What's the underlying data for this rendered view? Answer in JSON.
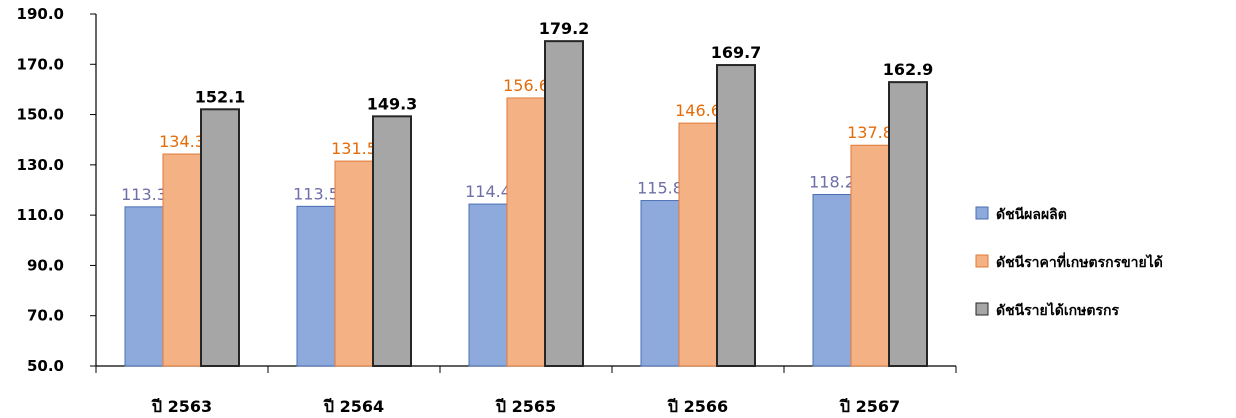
{
  "chart_data": {
    "type": "bar",
    "categories": [
      "ปี 2563",
      "ปี 2564",
      "ปี 2565",
      "ปี 2566",
      "ปี 2567"
    ],
    "series": [
      {
        "name": "ดัชนีผลผลิต",
        "values": [
          113.3,
          113.5,
          114.4,
          115.8,
          118.2
        ],
        "color": "#8EA9DB",
        "label_color": "#6E6EA8"
      },
      {
        "name": "ดัชนีราคาที่เกษตรกรขายได้",
        "values": [
          134.3,
          131.5,
          156.6,
          146.6,
          137.8
        ],
        "color": "#F4B183",
        "label_color": "#E46C0A"
      },
      {
        "name": "ดัชนีรายได้เกษตรกร",
        "values": [
          152.1,
          149.3,
          179.2,
          169.7,
          162.9
        ],
        "color": "#A6A6A6",
        "label_color": "#000000"
      }
    ],
    "ylim": [
      50,
      190
    ],
    "yticks": [
      "50.0",
      "70.0",
      "90.0",
      "110.0",
      "130.0",
      "150.0",
      "170.0",
      "190.0"
    ],
    "grid": false,
    "legend": "right",
    "title": "",
    "xlabel": "",
    "ylabel": ""
  }
}
